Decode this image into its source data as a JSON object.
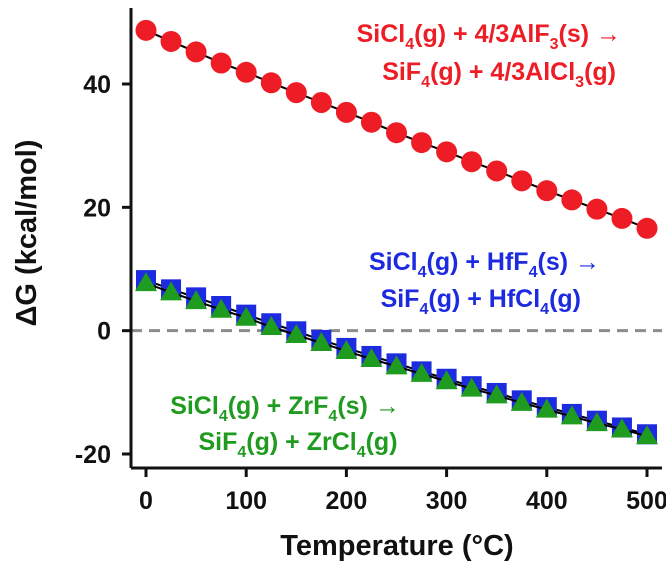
{
  "chart_data": {
    "type": "scatter",
    "xlabel": "Temperature (°C)",
    "ylabel": "ΔG (kcal/mol)",
    "xlim": [
      -10,
      505
    ],
    "ylim": [
      -22,
      52
    ],
    "xticks": [
      0,
      100,
      200,
      300,
      400,
      500
    ],
    "xtick_labels": [
      "0",
      "100",
      "200",
      "300",
      "400",
      "500"
    ],
    "yticks": [
      -20,
      0,
      20,
      40
    ],
    "ytick_labels": [
      "-20",
      "0",
      "20",
      "40"
    ],
    "grid": false,
    "zero_line": {
      "y": 0,
      "style": "dashed",
      "color": "#8c8c8c"
    },
    "x": [
      0,
      25,
      50,
      75,
      100,
      125,
      150,
      175,
      200,
      225,
      250,
      275,
      300,
      325,
      350,
      375,
      400,
      425,
      450,
      475,
      500
    ],
    "series": [
      {
        "marker": "circle",
        "color": "#ee1c25",
        "values": [
          48.7,
          46.9,
          45.2,
          43.4,
          41.9,
          40.2,
          38.6,
          37.0,
          35.4,
          33.8,
          32.1,
          30.5,
          29.0,
          27.4,
          25.9,
          24.3,
          22.7,
          21.2,
          19.7,
          18.2,
          16.6
        ]
      },
      {
        "marker": "square",
        "color": "#1c2ae0",
        "values": [
          8.2,
          6.7,
          5.4,
          4.0,
          2.6,
          1.2,
          -0.1,
          -1.5,
          -2.8,
          -4.1,
          -5.3,
          -6.6,
          -7.8,
          -9.0,
          -10.1,
          -11.3,
          -12.4,
          -13.5,
          -14.6,
          -15.7,
          -16.8
        ]
      },
      {
        "marker": "triangle",
        "color": "#1f9b1f",
        "values": [
          7.7,
          6.2,
          4.8,
          3.4,
          2.1,
          0.6,
          -0.7,
          -2.0,
          -3.3,
          -4.6,
          -5.8,
          -7.0,
          -8.2,
          -9.4,
          -10.5,
          -11.7,
          -12.8,
          -13.9,
          -15.0,
          -16.0,
          -17.1
        ]
      }
    ],
    "annotations": [
      {
        "color": "#ee1c25",
        "line1": {
          "a": "SiCl",
          "a_sub": "4",
          "b": "(g) + 4/3AlF",
          "b_sub": "3",
          "c": "(s) →"
        },
        "line2": {
          "a": "SiF",
          "a_sub": "4",
          "b": "(g) + 4/3AlCl",
          "b_sub": "3",
          "c": "(g)"
        }
      },
      {
        "color": "#1c2ae0",
        "line1": {
          "a": "SiCl",
          "a_sub": "4",
          "b": "(g) + HfF",
          "b_sub": "4",
          "c": "(s) →"
        },
        "line2": {
          "a": "SiF",
          "a_sub": "4",
          "b": "(g) + HfCl",
          "b_sub": "4",
          "c": "(g)"
        }
      },
      {
        "color": "#1f9b1f",
        "line1": {
          "a": "SiCl",
          "a_sub": "4",
          "b": "(g) + ZrF",
          "b_sub": "4",
          "c": "(s) →"
        },
        "line2": {
          "a": "SiF",
          "a_sub": "4",
          "b": "(g) + ZrCl",
          "b_sub": "4",
          "c": "(g)"
        }
      }
    ]
  }
}
